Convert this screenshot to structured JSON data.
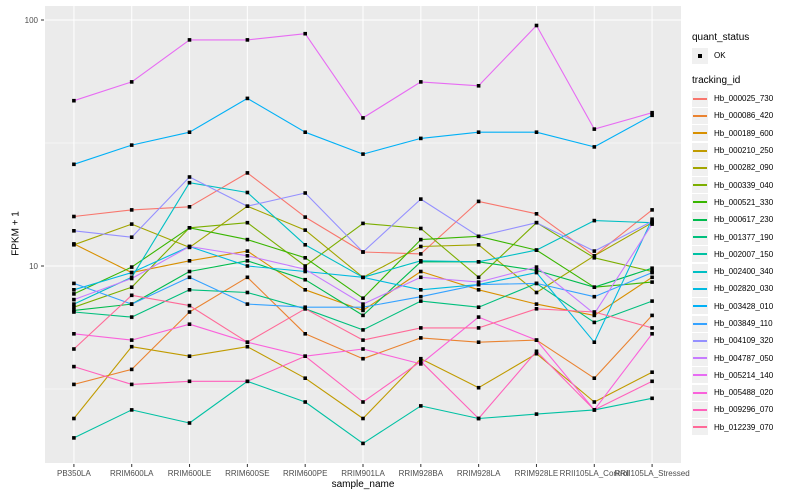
{
  "colors": {
    "panel_bg": "#ebebeb",
    "grid": "#ffffff",
    "tick": "#333333",
    "tick_label": "#4d4d4d",
    "point": "#000000",
    "legend_key_bg": "#f0f0f0"
  },
  "legend": {
    "quant_status_title": "quant_status",
    "quant_status_items": [
      {
        "label": "OK"
      }
    ],
    "tracking_id_title": "tracking_id"
  },
  "chart_data": {
    "type": "line",
    "title": "",
    "xlabel": "sample_name",
    "ylabel": "FPKM + 1",
    "y_scale": "log10",
    "ylim": [
      1.58,
      114
    ],
    "y_ticks": [
      10,
      100
    ],
    "y_minor": [
      3.162,
      31.623
    ],
    "grid": true,
    "legend_position": "right",
    "point_shape": "small-black-square",
    "categories": [
      "PB350LA",
      "RRIM600LA",
      "RRIM600LE",
      "RRIM600SE",
      "RRIM600PE",
      "RRIM901LA",
      "RRIM928BA",
      "RRIM928LA",
      "RRIM928LE",
      "RRII105LA_Control",
      "RRII105LA_Stressed"
    ],
    "series": [
      {
        "name": "Hb_000025_730",
        "color": "#F8766D",
        "values": [
          15.9,
          16.9,
          17.4,
          23.9,
          15.8,
          11.4,
          11.2,
          18.3,
          16.3,
          11.0,
          16.9
        ]
      },
      {
        "name": "Hb_000086_420",
        "color": "#EA8331",
        "values": [
          3.3,
          3.8,
          6.5,
          9.0,
          5.3,
          4.2,
          5.1,
          4.9,
          5.0,
          3.5,
          6.3
        ]
      },
      {
        "name": "Hb_000189_600",
        "color": "#D89000",
        "values": [
          12.3,
          9.4,
          10.5,
          11.5,
          8.0,
          6.6,
          9.5,
          8.0,
          7.0,
          6.3,
          9.0
        ]
      },
      {
        "name": "Hb_000210_250",
        "color": "#C09B00",
        "values": [
          2.4,
          4.7,
          4.3,
          4.7,
          3.5,
          2.4,
          4.2,
          3.2,
          4.4,
          2.8,
          3.7
        ]
      },
      {
        "name": "Hb_000282_090",
        "color": "#A3A500",
        "values": [
          12.2,
          14.8,
          11.9,
          17.5,
          14.0,
          9.0,
          12.0,
          12.2,
          7.8,
          11.0,
          15.0
        ]
      },
      {
        "name": "Hb_000339_040",
        "color": "#7CAE00",
        "values": [
          6.8,
          8.2,
          14.3,
          15.0,
          10.0,
          14.9,
          14.2,
          9.0,
          15.0,
          10.8,
          9.5
        ]
      },
      {
        "name": "Hb_000521_330",
        "color": "#39B600",
        "values": [
          7.7,
          9.9,
          14.3,
          12.8,
          10.8,
          7.4,
          12.8,
          13.2,
          11.6,
          8.2,
          8.6
        ]
      },
      {
        "name": "Hb_000617_230",
        "color": "#00BB4E",
        "values": [
          6.6,
          7.0,
          9.5,
          10.5,
          8.8,
          6.3,
          10.4,
          10.4,
          9.6,
          8.2,
          9.8
        ]
      },
      {
        "name": "Hb_001377_190",
        "color": "#00BF7D",
        "values": [
          6.5,
          6.2,
          8.0,
          7.8,
          6.7,
          5.5,
          7.2,
          6.8,
          8.5,
          5.9,
          7.2
        ]
      },
      {
        "name": "Hb_002007_150",
        "color": "#00C1A3",
        "values": [
          2.0,
          2.6,
          2.3,
          3.4,
          2.8,
          1.9,
          2.7,
          2.4,
          2.5,
          2.6,
          2.9
        ]
      },
      {
        "name": "Hb_002400_340",
        "color": "#00BFC4",
        "values": [
          7.0,
          9.0,
          21.8,
          19.9,
          12.2,
          9.0,
          10.5,
          10.4,
          11.6,
          15.3,
          15.0
        ]
      },
      {
        "name": "Hb_002820_030",
        "color": "#00BAE0",
        "values": [
          8.0,
          9.4,
          12.0,
          10.0,
          9.5,
          9.0,
          8.0,
          8.4,
          9.4,
          4.9,
          15.5
        ]
      },
      {
        "name": "Hb_003428_010",
        "color": "#00B0F6",
        "values": [
          25.9,
          31.0,
          35.0,
          48.0,
          35.0,
          28.5,
          33.0,
          35.0,
          35.0,
          30.5,
          41.0
        ]
      },
      {
        "name": "Hb_003849_110",
        "color": "#35A2FF",
        "values": [
          8.5,
          7.0,
          9.0,
          7.0,
          6.8,
          6.8,
          7.5,
          8.4,
          8.5,
          7.5,
          9.4
        ]
      },
      {
        "name": "Hb_004109_320",
        "color": "#9590FF",
        "values": [
          13.9,
          13.1,
          23.0,
          17.5,
          19.8,
          11.4,
          18.7,
          13.2,
          15.0,
          11.5,
          15.2
        ]
      },
      {
        "name": "Hb_004787_050",
        "color": "#C77CFF",
        "values": [
          7.3,
          8.9,
          12.0,
          11.0,
          9.7,
          7.0,
          9.0,
          8.6,
          9.9,
          6.4,
          14.8
        ]
      },
      {
        "name": "Hb_005214_140",
        "color": "#E76BF3",
        "values": [
          47.0,
          56.0,
          83.0,
          83.0,
          88.0,
          40.0,
          56.0,
          54.0,
          95.0,
          36.0,
          42.0
        ]
      },
      {
        "name": "Hb_005488_020",
        "color": "#FA62DB",
        "values": [
          5.3,
          5.0,
          5.8,
          4.9,
          4.3,
          4.6,
          4.0,
          6.2,
          5.0,
          2.6,
          5.3
        ]
      },
      {
        "name": "Hb_009296_070",
        "color": "#FF62BC",
        "values": [
          3.9,
          3.3,
          3.4,
          3.4,
          4.3,
          2.8,
          4.1,
          2.4,
          4.5,
          2.6,
          3.4
        ]
      },
      {
        "name": "Hb_012239_070",
        "color": "#FF6A98",
        "values": [
          4.6,
          7.6,
          6.9,
          4.9,
          6.7,
          5.0,
          5.6,
          5.6,
          6.7,
          6.5,
          5.6
        ]
      }
    ]
  }
}
